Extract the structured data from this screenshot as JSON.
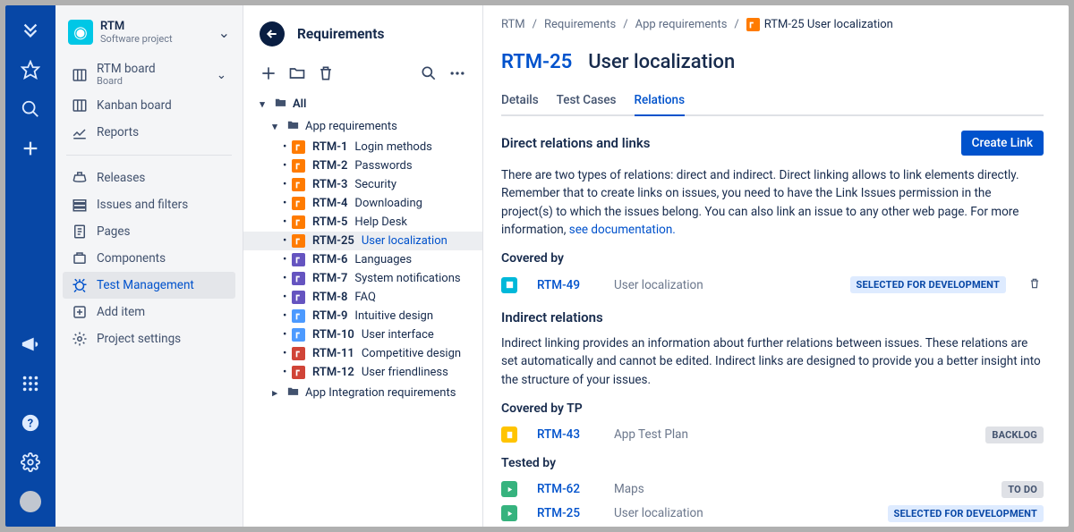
{
  "colors": {
    "rail_bg": "#0747a6",
    "sidebar_bg": "#f4f5f7",
    "primary": "#0052cc",
    "text": "#172b4d",
    "muted": "#6b778c",
    "orange": "#ff7b00",
    "purple": "#6554c0",
    "bluegrey": "#4c9aff",
    "red": "#d04437",
    "yellow": "#ffc400",
    "teal": "#36b37e",
    "cyan": "#00b8d9"
  },
  "project": {
    "name": "RTM",
    "subtitle": "Software project"
  },
  "board_nav": {
    "board_name": "RTM board",
    "board_sub": "Board",
    "kanban": "Kanban board",
    "reports": "Reports"
  },
  "sidebar": {
    "releases": "Releases",
    "issues": "Issues and filters",
    "pages": "Pages",
    "components": "Components",
    "test_mgmt": "Test Management",
    "add_item": "Add item",
    "project_settings": "Project settings"
  },
  "tree": {
    "title": "Requirements",
    "all": "All",
    "folder1": "App requirements",
    "folder2": "App Integration requirements",
    "items": [
      {
        "key": "RTM-1",
        "summary": "Login methods",
        "type": "orange"
      },
      {
        "key": "RTM-2",
        "summary": "Passwords",
        "type": "orange"
      },
      {
        "key": "RTM-3",
        "summary": "Security",
        "type": "orange"
      },
      {
        "key": "RTM-4",
        "summary": "Downloading",
        "type": "orange"
      },
      {
        "key": "RTM-5",
        "summary": "Help Desk",
        "type": "orange"
      },
      {
        "key": "RTM-25",
        "summary": "User localization",
        "type": "orange",
        "selected": true
      },
      {
        "key": "RTM-6",
        "summary": "Languages",
        "type": "purple"
      },
      {
        "key": "RTM-7",
        "summary": "System notifications",
        "type": "purple"
      },
      {
        "key": "RTM-8",
        "summary": "FAQ",
        "type": "purple"
      },
      {
        "key": "RTM-9",
        "summary": "Intuitive design",
        "type": "bluegrey"
      },
      {
        "key": "RTM-10",
        "summary": "User interface",
        "type": "bluegrey"
      },
      {
        "key": "RTM-11",
        "summary": "Competitive design",
        "type": "red"
      },
      {
        "key": "RTM-12",
        "summary": "User friendliness",
        "type": "red"
      }
    ]
  },
  "breadcrumbs": {
    "a": "RTM",
    "b": "Requirements",
    "c": "App requirements",
    "d_key": "RTM-25",
    "d_summary": "User localization"
  },
  "issue": {
    "key": "RTM-25",
    "summary": "User localization"
  },
  "tabs": {
    "details": "Details",
    "testcases": "Test Cases",
    "relations": "Relations"
  },
  "relations": {
    "direct_heading": "Direct relations and links",
    "create_link": "Create Link",
    "direct_body": "There are two types of relations: direct and indirect. Direct linking allows to link elements directly. Remember that to create links on issues, you need to have the Link Issues permission in the project(s) to which the issues belong. You can also link an issue to any other web page. For more information, ",
    "doc_link": "see documentation.",
    "covered_by": "Covered by",
    "covered_row": {
      "key": "RTM-49",
      "summary": "User localization",
      "status": "SELECTED FOR DEVELOPMENT",
      "status_variant": "dev",
      "type_color": "cyan"
    },
    "indirect_heading": "Indirect relations",
    "indirect_body": "Indirect linking provides an information about further relations between issues. These relations are set automatically and cannot be edited. Indirect links are designed to provide you a better insight into the structure of your issues.",
    "covered_by_tp": "Covered by TP",
    "tp_row": {
      "key": "RTM-43",
      "summary": "App Test Plan",
      "status": "BACKLOG",
      "status_variant": "backlog",
      "type_color": "yellow"
    },
    "tested_by": "Tested by",
    "tested_rows": [
      {
        "key": "RTM-62",
        "summary": "Maps",
        "status": "TO DO",
        "status_variant": "todo",
        "type_color": "teal"
      },
      {
        "key": "RTM-25",
        "summary": "User localization",
        "status": "SELECTED FOR DEVELOPMENT",
        "status_variant": "dev",
        "type_color": "teal"
      }
    ]
  }
}
